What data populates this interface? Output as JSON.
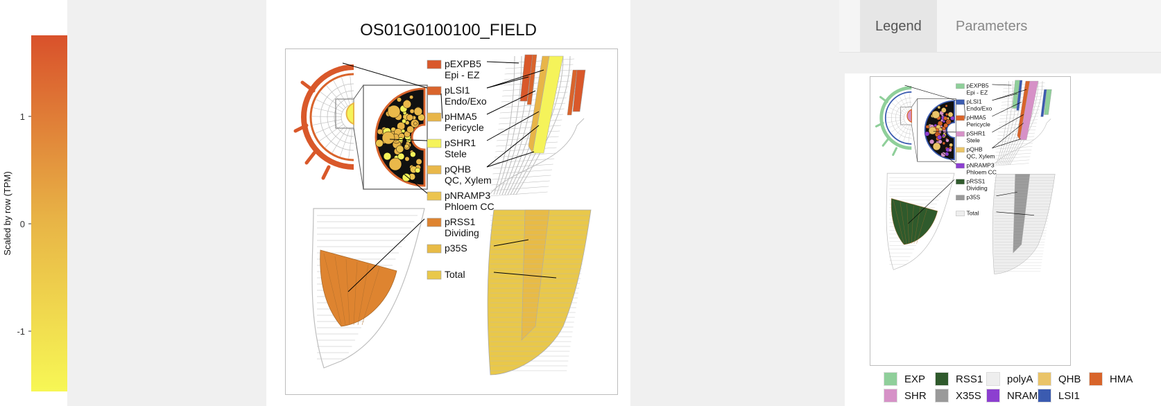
{
  "colorbar": {
    "label": "Scaled by row (TPM)",
    "ticks": [
      "1",
      "0",
      "-1"
    ],
    "color_high": "#d9512b",
    "color_mid": "#e8b446",
    "color_low": "#f7f755"
  },
  "main": {
    "title": "OS01G0100100_FIELD",
    "entries": [
      {
        "name": "pEXPB5",
        "tissue": "Epi - EZ",
        "color": "#d9582a"
      },
      {
        "name": "pLSI1",
        "tissue": "Endo/Exo",
        "color": "#d9642c"
      },
      {
        "name": "pHMA5",
        "tissue": "Pericycle",
        "color": "#e8b548"
      },
      {
        "name": "pSHR1",
        "tissue": "Stele",
        "color": "#f5f35a"
      },
      {
        "name": "pQHB",
        "tissue": "QC, Xylem",
        "color": "#e9b84a"
      },
      {
        "name": "pNRAMP3",
        "tissue": "Phloem CC",
        "color": "#ecc44e"
      },
      {
        "name": "pRSS1",
        "tissue": "Dividing",
        "color": "#de8430"
      },
      {
        "name": "p35S",
        "tissue": "",
        "color": "#e8bb46"
      },
      {
        "name": "Total",
        "tissue": "",
        "color": "#e9c84a"
      }
    ]
  },
  "tabs": {
    "legend": "Legend",
    "parameters": "Parameters"
  },
  "legend": {
    "entries": [
      {
        "name": "pEXPB5",
        "tissue": "Epi - EZ",
        "color": "#8fcf9a"
      },
      {
        "name": "pLSI1",
        "tissue": "Endo/Exo",
        "color": "#3b5bb0"
      },
      {
        "name": "pHMA5",
        "tissue": "Pericycle",
        "color": "#d8642a"
      },
      {
        "name": "pSHR1",
        "tissue": "Stele",
        "color": "#d691c7"
      },
      {
        "name": "pQHB",
        "tissue": "QC, Xylem",
        "color": "#eac468"
      },
      {
        "name": "pNRAMP3",
        "tissue": "Phloem CC",
        "color": "#8c3fd0"
      },
      {
        "name": "pRSS1",
        "tissue": "Dividing",
        "color": "#2f5a2c"
      },
      {
        "name": "p35S",
        "tissue": "",
        "color": "#9a9a9a"
      },
      {
        "name": "Total",
        "tissue": "",
        "color": "#eeeeee"
      }
    ],
    "key": [
      {
        "label": "EXP",
        "color": "#8fcf9a"
      },
      {
        "label": "RSS1",
        "color": "#2f5a2c"
      },
      {
        "label": "polyA",
        "color": "#eeeeee"
      },
      {
        "label": "QHB",
        "color": "#eac468"
      },
      {
        "label": "HMA",
        "color": "#d8642a"
      },
      {
        "label": "SHR",
        "color": "#d691c7"
      },
      {
        "label": "X35S",
        "color": "#9a9a9a"
      },
      {
        "label": "NRAMP",
        "color": "#8c3fd0"
      },
      {
        "label": "LSI1",
        "color": "#3b5bb0"
      }
    ]
  }
}
